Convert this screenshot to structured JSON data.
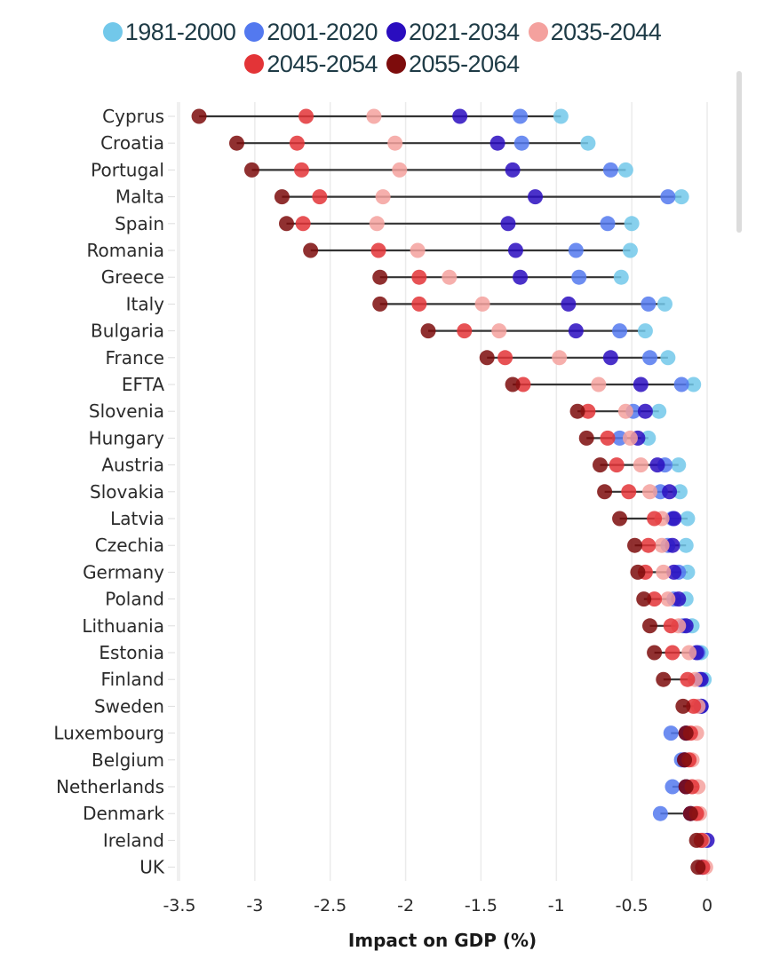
{
  "chart_data": {
    "type": "scatter",
    "subtype": "dot-plot",
    "title": "",
    "xlabel": "Impact on GDP (%)",
    "ylabel": "",
    "xlim": [
      -3.5,
      0
    ],
    "xticks": [
      -3.5,
      -3,
      -2.5,
      -2,
      -1.5,
      -1,
      -0.5,
      0
    ],
    "xtick_labels": [
      "-3.5",
      "-3",
      "-2.5",
      "-2",
      "-1.5",
      "-1",
      "-0.5",
      "0"
    ],
    "grid": "vertical",
    "legend_position": "top",
    "series": [
      {
        "name": "1981-2000",
        "color": "#72c8ea"
      },
      {
        "name": "2001-2020",
        "color": "#5379ef"
      },
      {
        "name": "2021-2034",
        "color": "#2a0dbf"
      },
      {
        "name": "2035-2044",
        "color": "#f4a19e"
      },
      {
        "name": "2045-2054",
        "color": "#e33437"
      },
      {
        "name": "2055-2064",
        "color": "#7d0c0c"
      }
    ],
    "categories": [
      "Cyprus",
      "Croatia",
      "Portugal",
      "Malta",
      "Spain",
      "Romania",
      "Greece",
      "Italy",
      "Bulgaria",
      "France",
      "EFTA",
      "Slovenia",
      "Hungary",
      "Austria",
      "Slovakia",
      "Latvia",
      "Czechia",
      "Germany",
      "Poland",
      "Lithuania",
      "Estonia",
      "Finland",
      "Sweden",
      "Luxembourg",
      "Belgium",
      "Netherlands",
      "Denmark",
      "Ireland",
      "UK"
    ],
    "values": {
      "Cyprus": [
        -0.97,
        -1.24,
        -1.64,
        -2.21,
        -2.66,
        -3.37
      ],
      "Croatia": [
        -0.79,
        -1.23,
        -1.39,
        -2.07,
        -2.72,
        -3.12
      ],
      "Portugal": [
        -0.54,
        -0.64,
        -1.29,
        -2.04,
        -2.69,
        -3.02
      ],
      "Malta": [
        -0.17,
        -0.26,
        -1.14,
        -2.15,
        -2.57,
        -2.82
      ],
      "Spain": [
        -0.5,
        -0.66,
        -1.32,
        -2.19,
        -2.68,
        -2.79
      ],
      "Romania": [
        -0.51,
        -0.87,
        -1.27,
        -1.92,
        -2.18,
        -2.63
      ],
      "Greece": [
        -0.57,
        -0.85,
        -1.24,
        -1.71,
        -1.91,
        -2.17
      ],
      "Italy": [
        -0.28,
        -0.39,
        -0.92,
        -1.49,
        -1.91,
        -2.17
      ],
      "Bulgaria": [
        -0.41,
        -0.58,
        -0.87,
        -1.38,
        -1.61,
        -1.85
      ],
      "France": [
        -0.26,
        -0.38,
        -0.64,
        -0.98,
        -1.34,
        -1.46
      ],
      "EFTA": [
        -0.09,
        -0.17,
        -0.44,
        -0.72,
        -1.22,
        -1.29
      ],
      "Slovenia": [
        -0.32,
        -0.49,
        -0.41,
        -0.54,
        -0.79,
        -0.86
      ],
      "Hungary": [
        -0.39,
        -0.58,
        -0.46,
        -0.51,
        -0.66,
        -0.8
      ],
      "Austria": [
        -0.19,
        -0.28,
        -0.33,
        -0.44,
        -0.6,
        -0.71
      ],
      "Slovakia": [
        -0.18,
        -0.31,
        -0.25,
        -0.38,
        -0.52,
        -0.68
      ],
      "Latvia": [
        -0.13,
        -0.23,
        -0.22,
        -0.3,
        -0.35,
        -0.58
      ],
      "Czechia": [
        -0.14,
        -0.26,
        -0.23,
        -0.3,
        -0.39,
        -0.48
      ],
      "Germany": [
        -0.13,
        -0.19,
        -0.22,
        -0.29,
        -0.41,
        -0.46
      ],
      "Poland": [
        -0.14,
        -0.22,
        -0.19,
        -0.26,
        -0.35,
        -0.42
      ],
      "Lithuania": [
        -0.1,
        -0.16,
        -0.14,
        -0.19,
        -0.24,
        -0.38
      ],
      "Estonia": [
        -0.04,
        -0.06,
        -0.07,
        -0.12,
        -0.23,
        -0.35
      ],
      "Finland": [
        -0.02,
        -0.05,
        -0.04,
        -0.08,
        -0.13,
        -0.29
      ],
      "Sweden": [
        -0.04,
        -0.04,
        -0.04,
        -0.06,
        -0.09,
        -0.16
      ],
      "Luxembourg": [
        -0.14,
        -0.24,
        -0.14,
        -0.07,
        -0.11,
        -0.14
      ],
      "Belgium": [
        -0.15,
        -0.17,
        -0.15,
        -0.1,
        -0.12,
        -0.15
      ],
      "Netherlands": [
        -0.14,
        -0.23,
        -0.14,
        -0.06,
        -0.1,
        -0.14
      ],
      "Denmark": [
        -0.11,
        -0.31,
        -0.11,
        -0.05,
        -0.07,
        -0.11
      ],
      "Ireland": [
        -0.02,
        -0.03,
        0.0,
        -0.03,
        -0.04,
        -0.07
      ],
      "UK": [
        -0.03,
        -0.03,
        -0.03,
        -0.01,
        -0.03,
        -0.06
      ]
    }
  }
}
